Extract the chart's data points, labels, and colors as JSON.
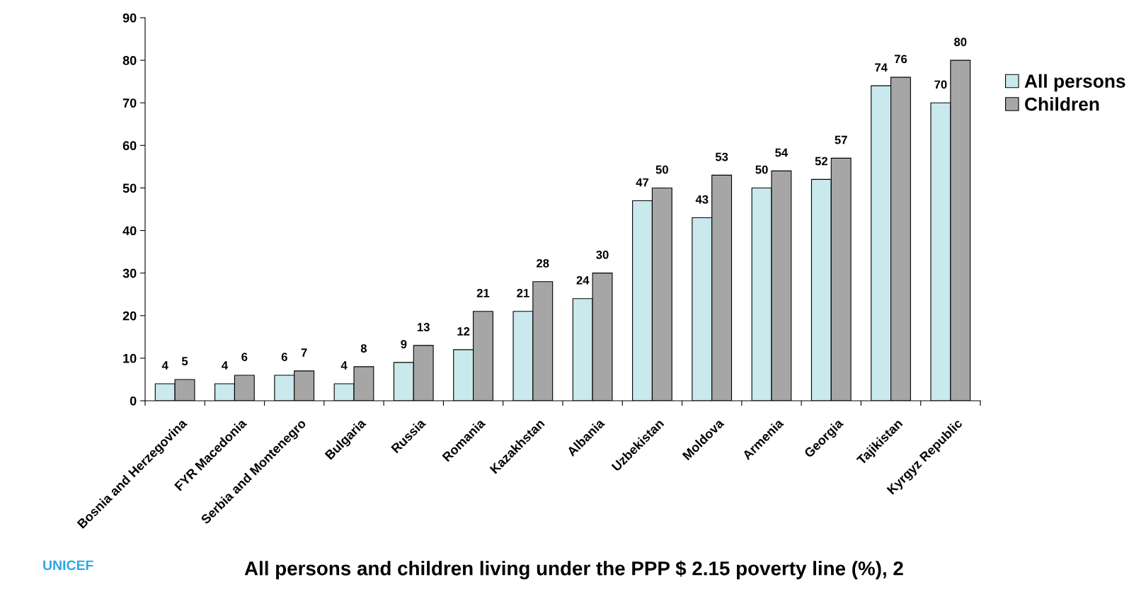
{
  "chart_data": {
    "type": "bar",
    "title": "All persons and children living under the PPP $ 2.15 poverty line (%), 2",
    "categories": [
      "Bosnia and Herzegovina",
      "FYR Macedonia",
      "Serbia and Montenegro",
      "Bulgaria",
      "Russia",
      "Romania",
      "Kazakhstan",
      "Albania",
      "Uzbekistan",
      "Moldova",
      "Armenia",
      "Georgia",
      "Tajikistan",
      "Kyrgyz Republic"
    ],
    "series": [
      {
        "name": "All persons",
        "color": "#c9e9ec",
        "values": [
          4,
          4,
          6,
          4,
          9,
          12,
          21,
          24,
          47,
          43,
          50,
          52,
          74,
          70
        ]
      },
      {
        "name": "Children",
        "color": "#a6a6a6",
        "values": [
          5,
          6,
          7,
          8,
          13,
          21,
          28,
          30,
          50,
          53,
          54,
          57,
          76,
          80
        ]
      }
    ],
    "ylim": [
      0,
      90
    ],
    "yticks": [
      0,
      10,
      20,
      30,
      40,
      50,
      60,
      70,
      80,
      90
    ],
    "grid": false,
    "legend": "right",
    "data_labels": true,
    "annotations": [
      "UNICEF"
    ]
  }
}
